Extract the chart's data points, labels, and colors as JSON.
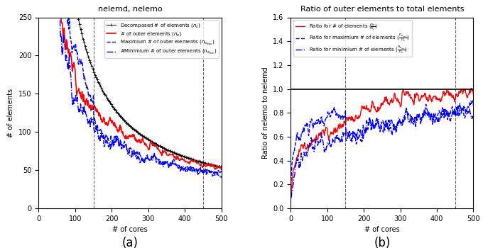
{
  "title_a": "nelemd, nelemo",
  "title_b": "Ratio of outer elements to total elements",
  "xlabel": "# of cores",
  "ylabel_a": "# of elements",
  "ylabel_b": "Ratio of nelemo to nelemd",
  "xlim": [
    0,
    500
  ],
  "ylim_a": [
    0,
    250
  ],
  "ylim_b": [
    0.0,
    1.6
  ],
  "vlines": [
    150,
    450
  ],
  "hline_b": 1.0,
  "legend_a": [
    "Decomposed # of elements ($n_c$)",
    "# of outer elements ($n_o$)",
    "Maximium # of outer elements ($n_{o_{max}}$)",
    "#Minimium # of outer elements ($n_{o_{min}}$)"
  ],
  "legend_b": [
    "Ratio for # of elements ($\\frac{n_o}{n_c}$)",
    "Ratio for maximium # of elements ($\\frac{n_{o_{max}}}{n_c}$)",
    "Ratio for minimium # of elements ($\\frac{n_{o_{min}}}{n_c}$)"
  ],
  "label_a": "(a)",
  "label_b": "(b)",
  "figsize": [
    6.8,
    3.5
  ],
  "dpi": 100
}
